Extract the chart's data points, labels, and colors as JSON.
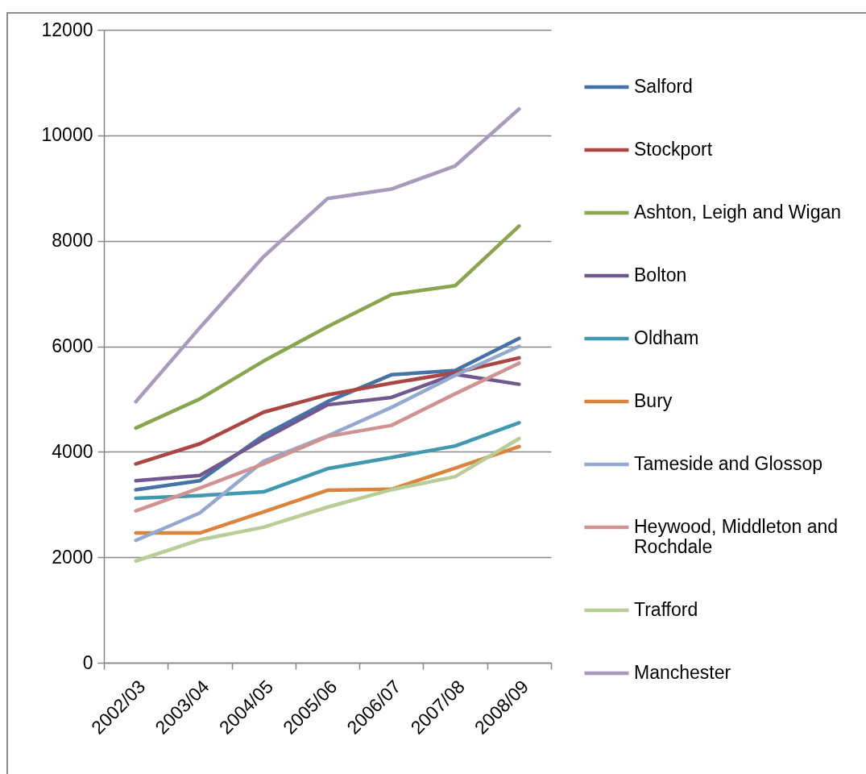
{
  "chart_data": {
    "type": "line",
    "categories": [
      "2002/03",
      "2003/04",
      "2004/05",
      "2005/06",
      "2006/07",
      "2007/08",
      "2008/09"
    ],
    "series": [
      {
        "name": "Salford",
        "color": "#4572a7",
        "values": [
          3280,
          3450,
          4310,
          4950,
          5460,
          5540,
          6150
        ]
      },
      {
        "name": "Stockport",
        "color": "#aa4643",
        "values": [
          3770,
          4150,
          4750,
          5080,
          5300,
          5500,
          5780
        ]
      },
      {
        "name": "Ashton, Leigh and Wigan",
        "color": "#89a54e",
        "values": [
          4450,
          5000,
          5720,
          6370,
          6980,
          7150,
          8280
        ]
      },
      {
        "name": "Bolton",
        "color": "#71588f",
        "values": [
          3450,
          3550,
          4240,
          4890,
          5030,
          5470,
          5280
        ]
      },
      {
        "name": "Oldham",
        "color": "#4198af",
        "values": [
          3120,
          3170,
          3240,
          3680,
          3890,
          4110,
          4550
        ]
      },
      {
        "name": "Bury",
        "color": "#db843d",
        "values": [
          2460,
          2460,
          2860,
          3270,
          3290,
          3690,
          4100
        ]
      },
      {
        "name": "Tameside and Glossop",
        "color": "#93a9cf",
        "values": [
          2320,
          2840,
          3820,
          4300,
          4840,
          5450,
          6000
        ]
      },
      {
        "name": "Heywood, Middleton and Rochdale",
        "color": "#d19392",
        "values": [
          2880,
          3310,
          3770,
          4290,
          4500,
          5100,
          5680
        ]
      },
      {
        "name": "Trafford",
        "color": "#b9cd96",
        "values": [
          1930,
          2330,
          2570,
          2950,
          3280,
          3530,
          4250
        ]
      },
      {
        "name": "Manchester",
        "color": "#a99bbd",
        "values": [
          4950,
          6350,
          7700,
          8800,
          8980,
          9420,
          10500
        ]
      }
    ],
    "ylim": [
      0,
      12000
    ],
    "yticks": [
      0,
      2000,
      4000,
      6000,
      8000,
      10000,
      12000
    ],
    "grid": "y",
    "legend": "right",
    "line_style": "solid"
  }
}
